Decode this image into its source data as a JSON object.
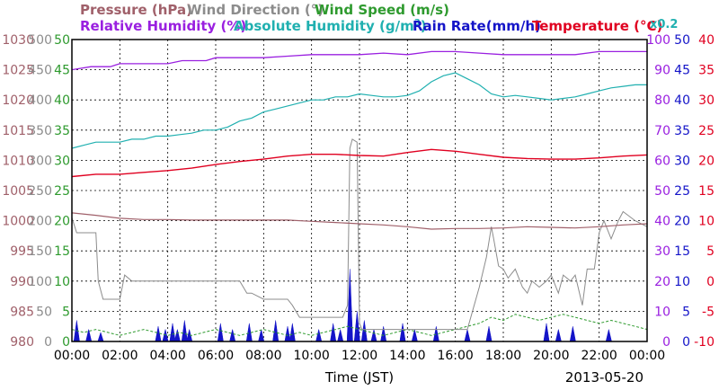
{
  "chart_data": {
    "type": "line",
    "date": "2013-05-20",
    "xlabel": "Time (JST)",
    "x_ticks": [
      "00:00",
      "02:00",
      "04:00",
      "06:00",
      "08:00",
      "10:00",
      "12:00",
      "14:00",
      "16:00",
      "18:00",
      "20:00",
      "22:00",
      "00:00"
    ],
    "legend_row1": [
      {
        "text": "Pressure (hPa)",
        "color": "#a0606a"
      },
      {
        "text": "Wind Direction (°)",
        "color": "#8c8c8c"
      },
      {
        "text": "Wind Speed (m/s)",
        "color": "#2e9a2e"
      }
    ],
    "legend_row2": [
      {
        "text": "Relative Humidity (%)",
        "color": "#9a20e0"
      },
      {
        "text": "Absolute Humidity (g/m",
        "sup": "3",
        "tail": ")",
        "color": "#20b0b0"
      },
      {
        "text": "Rain Rate(mm/h)",
        "color": "#1414c8"
      },
      {
        "text": "Temperature (°C)",
        "color": "#e00020"
      }
    ],
    "abs_humidity_factor": "x0.2",
    "axes": {
      "pressure": {
        "range": [
          980,
          1030
        ],
        "ticks": [
          "1030",
          "1025",
          "1020",
          "1015",
          "1010",
          "1005",
          "1000",
          "995",
          "990",
          "985",
          "980"
        ],
        "color": "#a0606a"
      },
      "wind_direction": {
        "range": [
          0,
          500
        ],
        "ticks": [
          "500",
          "450",
          "400",
          "350",
          "300",
          "250",
          "200",
          "150",
          "100",
          "50",
          "0"
        ],
        "color": "#8c8c8c"
      },
      "wind_speed": {
        "range": [
          0,
          50
        ],
        "ticks": [
          "50",
          "45",
          "40",
          "35",
          "30",
          "25",
          "20",
          "15",
          "10",
          "5",
          "0"
        ],
        "color": "#2e9a2e"
      },
      "humidity": {
        "range": [
          0,
          100
        ],
        "ticks": [
          "100",
          "90",
          "80",
          "70",
          "60",
          "50",
          "40",
          "30",
          "20",
          "10",
          "0"
        ],
        "color": "#9a20e0"
      },
      "rain_rate": {
        "range": [
          0,
          50
        ],
        "ticks": [
          "50",
          "45",
          "40",
          "35",
          "30",
          "25",
          "20",
          "15",
          "10",
          "5",
          "0"
        ],
        "color": "#1414c8"
      },
      "temperature": {
        "range": [
          -10,
          40
        ],
        "ticks": [
          "40",
          "35",
          "30",
          "25",
          "20",
          "15",
          "10",
          "5",
          "0",
          "-5",
          "-10"
        ],
        "color": "#e00020"
      }
    },
    "series": [
      {
        "name": "Relative Humidity (%)",
        "color": "#9a20e0",
        "x": [
          0,
          0.4,
          0.8,
          1.2,
          1.6,
          2.0,
          2.6,
          3.0,
          4.0,
          4.6,
          5.0,
          5.6,
          6.0,
          7.0,
          8.0,
          9.0,
          10.0,
          11.0,
          12.0,
          13.0,
          14.0,
          15.0,
          16.0,
          17.0,
          18.0,
          19.0,
          20.0,
          21.0,
          22.0,
          23.0,
          24.0
        ],
        "y": [
          90,
          90.5,
          91,
          91,
          91,
          92,
          92,
          92,
          92,
          93,
          93,
          93,
          94,
          94,
          94,
          94.5,
          95,
          95,
          95,
          95.5,
          95,
          96,
          96,
          95.5,
          95,
          95,
          95,
          95,
          96,
          96,
          96
        ]
      },
      {
        "name": "Absolute Humidity x0.2",
        "color": "#20b0b0",
        "x": [
          0,
          0.5,
          1.0,
          1.5,
          2.0,
          2.5,
          3.0,
          3.5,
          4.0,
          4.5,
          5.0,
          5.5,
          6.0,
          6.5,
          7.0,
          7.5,
          8.0,
          8.5,
          9.0,
          9.5,
          10.0,
          10.5,
          11.0,
          11.5,
          12.0,
          12.5,
          13.0,
          13.5,
          14.0,
          14.5,
          15.0,
          15.5,
          16.0,
          16.5,
          17.0,
          17.5,
          18.0,
          18.5,
          19.0,
          19.5,
          20.0,
          20.5,
          21.0,
          21.5,
          22.0,
          22.5,
          23.0,
          23.5,
          24.0
        ],
        "y": [
          64,
          65,
          66,
          66,
          66,
          67,
          67,
          68,
          68,
          68.5,
          69,
          70,
          70,
          71,
          73,
          74,
          76,
          77,
          78,
          79,
          80,
          80,
          81,
          81,
          82,
          81.5,
          81,
          81,
          81.5,
          83,
          86,
          88,
          89,
          87,
          85,
          82,
          81,
          81.5,
          81,
          80.5,
          80,
          80.5,
          81,
          82,
          83,
          84,
          84.5,
          85,
          85
        ]
      },
      {
        "name": "Temperature (°C)",
        "color": "#e00020",
        "x": [
          0,
          1,
          2,
          3,
          4,
          5,
          6,
          7,
          8,
          9,
          10,
          11,
          12,
          13,
          14,
          15,
          16,
          17,
          18,
          19,
          20,
          21,
          22,
          23,
          24
        ],
        "y": [
          17.3,
          17.7,
          17.7,
          18,
          18.3,
          18.7,
          19.3,
          19.8,
          20.2,
          20.7,
          21,
          21,
          20.8,
          20.7,
          21.3,
          21.8,
          21.5,
          21,
          20.5,
          20.3,
          20.2,
          20.2,
          20.4,
          20.7,
          20.9
        ]
      },
      {
        "name": "Pressure (hPa)",
        "color": "#a0606a",
        "x": [
          0,
          1,
          2,
          3,
          4,
          5,
          6,
          7,
          8,
          9,
          10,
          11,
          12,
          13,
          14,
          15,
          16,
          17,
          18,
          19,
          20,
          21,
          22,
          23,
          24
        ],
        "y": [
          1001.3,
          1000.9,
          1000.4,
          1000.2,
          1000.2,
          1000.1,
          1000.1,
          1000.1,
          1000.1,
          1000.1,
          999.9,
          999.7,
          999.5,
          999.3,
          999,
          998.6,
          998.7,
          998.7,
          998.8,
          999,
          998.9,
          998.8,
          999,
          999.3,
          999.5
        ]
      },
      {
        "name": "Wind Direction (°)",
        "color": "#8c8c8c",
        "x": [
          0,
          0.2,
          0.5,
          0.8,
          1.0,
          1.1,
          1.3,
          1.6,
          2.0,
          2.2,
          2.5,
          2.6,
          3.0,
          4.0,
          5.0,
          6.0,
          7.0,
          7.3,
          7.5,
          8.0,
          9.0,
          9.2,
          9.5,
          10.0,
          10.5,
          11.0,
          11.3,
          11.5,
          11.6,
          11.7,
          11.9,
          12.0,
          12.1,
          12.3,
          12.5,
          13.0,
          14.0,
          15.0,
          15.8,
          16.0,
          16.2,
          16.5,
          17.0,
          17.3,
          17.5,
          17.6,
          17.8,
          18.0,
          18.2,
          18.5,
          18.8,
          19.0,
          19.2,
          19.5,
          19.8,
          20.0,
          20.3,
          20.5,
          20.8,
          21.0,
          21.3,
          21.5,
          21.8,
          22.0,
          22.2,
          22.5,
          22.8,
          23.0,
          23.5,
          24.0
        ],
        "y": [
          205,
          180,
          180,
          180,
          180,
          100,
          70,
          70,
          70,
          110,
          100,
          100,
          100,
          100,
          100,
          100,
          100,
          80,
          80,
          70,
          70,
          60,
          40,
          40,
          40,
          40,
          40,
          60,
          320,
          335,
          330,
          30,
          20,
          20,
          20,
          20,
          20,
          20,
          20,
          20,
          20,
          20,
          90,
          140,
          190,
          170,
          125,
          120,
          105,
          120,
          90,
          80,
          100,
          90,
          100,
          110,
          80,
          110,
          100,
          110,
          60,
          120,
          120,
          180,
          200,
          170,
          200,
          215,
          200,
          190
        ]
      },
      {
        "name": "Wind Speed (m/s)",
        "color": "#2e9a2e",
        "x": [
          0,
          0.5,
          1,
          1.5,
          2,
          2.5,
          3,
          3.5,
          4,
          4.5,
          5,
          5.5,
          6,
          6.5,
          7,
          7.5,
          8,
          8.5,
          9,
          9.5,
          10,
          10.5,
          11,
          11.5,
          12,
          12.5,
          13,
          13.5,
          14,
          14.5,
          15,
          15.5,
          16,
          16.5,
          17,
          17.5,
          18,
          18.5,
          19,
          19.5,
          20,
          20.5,
          21,
          21.5,
          22,
          22.5,
          23,
          23.5,
          24
        ],
        "y": [
          2,
          1.5,
          2,
          1.5,
          1,
          1.5,
          2,
          1.5,
          1,
          1.5,
          1,
          1.5,
          2,
          1.5,
          1,
          1.5,
          2,
          1.5,
          1,
          1.5,
          1,
          1.5,
          2,
          2.5,
          2,
          1.5,
          1,
          1.5,
          2,
          1.5,
          1,
          1.5,
          2,
          2.5,
          3,
          4,
          3.5,
          4.5,
          4,
          3.5,
          4,
          4.5,
          4,
          3.5,
          3,
          3.5,
          3,
          2.5,
          2
        ]
      },
      {
        "name": "Rain Rate(mm/h)",
        "color": "#1414c8",
        "bursts": [
          {
            "t": 0.2,
            "v": 3.5
          },
          {
            "t": 0.7,
            "v": 2.0
          },
          {
            "t": 1.2,
            "v": 1.5
          },
          {
            "t": 3.6,
            "v": 2.5
          },
          {
            "t": 3.9,
            "v": 2.0
          },
          {
            "t": 4.2,
            "v": 3.0
          },
          {
            "t": 4.4,
            "v": 2.0
          },
          {
            "t": 4.7,
            "v": 3.5
          },
          {
            "t": 4.9,
            "v": 2.0
          },
          {
            "t": 6.2,
            "v": 3.0
          },
          {
            "t": 6.7,
            "v": 2.0
          },
          {
            "t": 7.4,
            "v": 3.0
          },
          {
            "t": 7.9,
            "v": 2.0
          },
          {
            "t": 8.5,
            "v": 3.5
          },
          {
            "t": 9.0,
            "v": 2.5
          },
          {
            "t": 9.2,
            "v": 3.0
          },
          {
            "t": 10.3,
            "v": 2.0
          },
          {
            "t": 10.9,
            "v": 3.0
          },
          {
            "t": 11.2,
            "v": 2.0
          },
          {
            "t": 11.6,
            "v": 12.0
          },
          {
            "t": 11.9,
            "v": 5.0
          },
          {
            "t": 12.2,
            "v": 3.5
          },
          {
            "t": 12.6,
            "v": 2.0
          },
          {
            "t": 13.0,
            "v": 2.5
          },
          {
            "t": 13.8,
            "v": 3.0
          },
          {
            "t": 14.3,
            "v": 2.0
          },
          {
            "t": 15.2,
            "v": 2.5
          },
          {
            "t": 16.5,
            "v": 2.0
          },
          {
            "t": 17.4,
            "v": 2.5
          },
          {
            "t": 19.8,
            "v": 3.0
          },
          {
            "t": 20.3,
            "v": 2.0
          },
          {
            "t": 20.9,
            "v": 2.5
          },
          {
            "t": 22.4,
            "v": 2.0
          }
        ]
      }
    ]
  }
}
